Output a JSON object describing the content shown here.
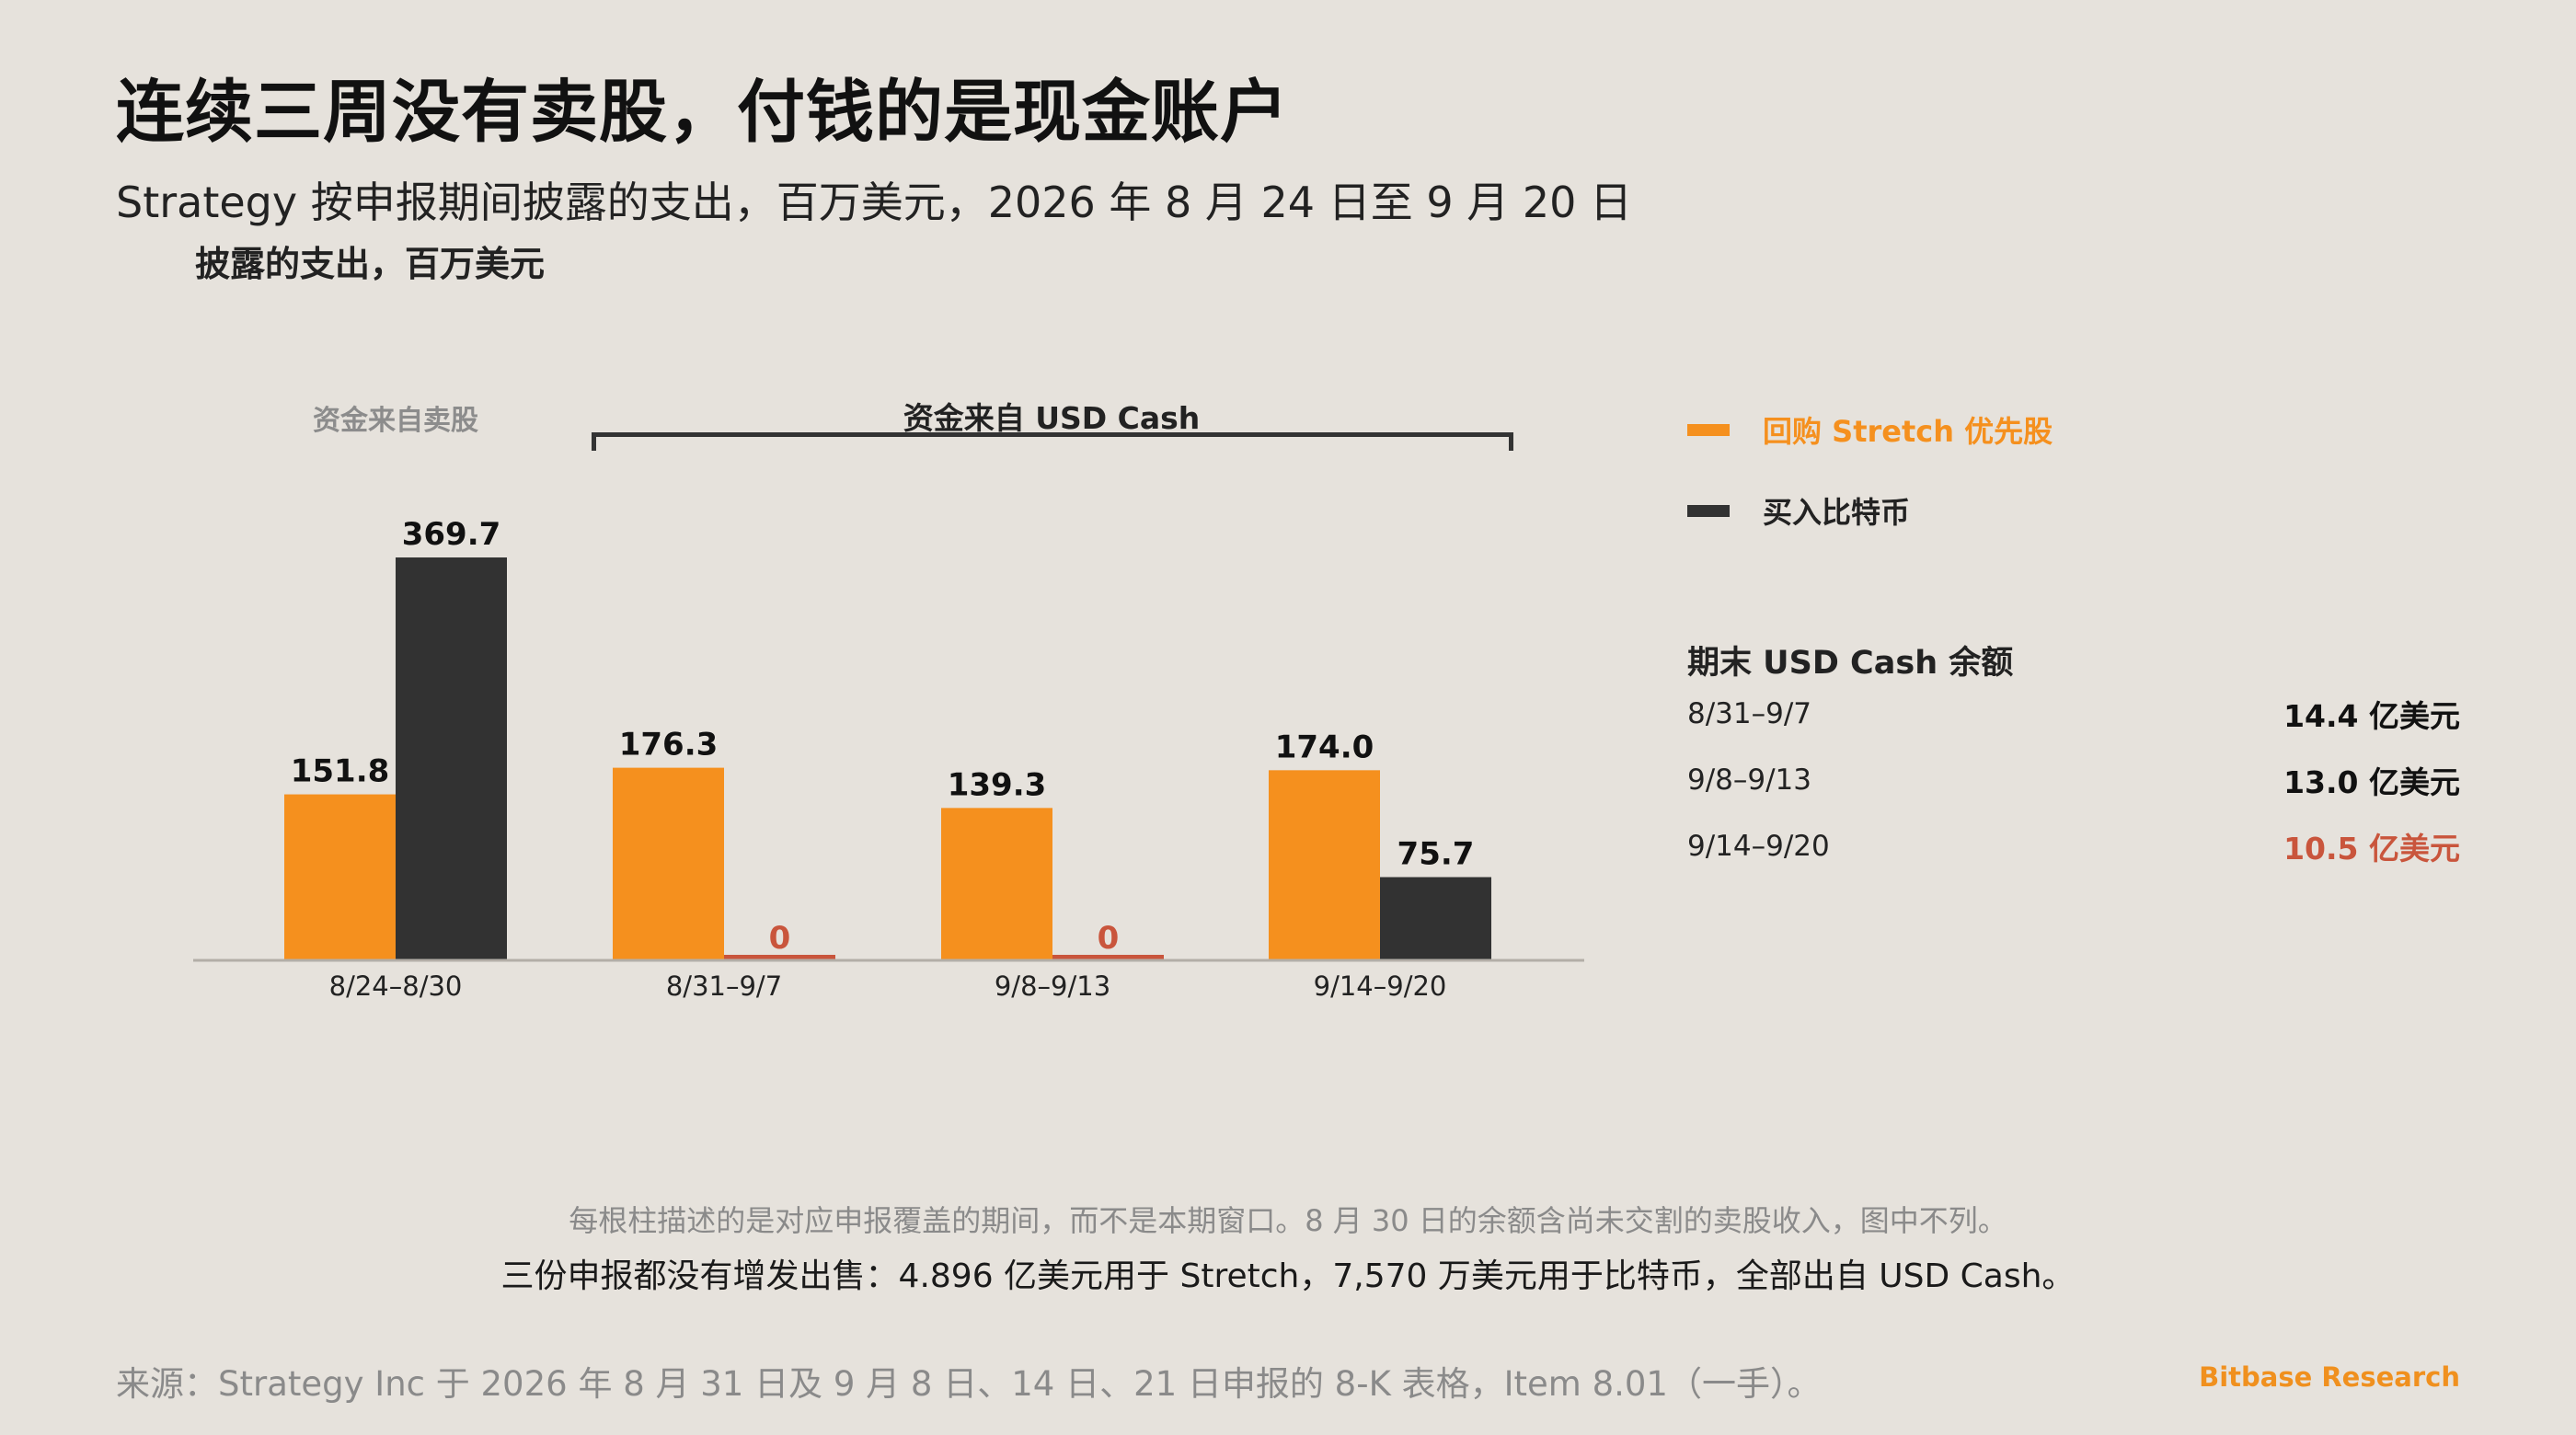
{
  "title": "连续三周没有卖股，付钱的是现金账户",
  "subtitle": "Strategy 按申报期间披露的支出，百万美元，2026 年 8 月 24 日至 9 月 20 日",
  "colors": {
    "stretch": "#f5901e",
    "bitcoin": "#323232",
    "zero": "#c9553c",
    "axis": "#b3aea7",
    "highlight": "#c9553c"
  },
  "legend": [
    {
      "label": "回购 Stretch 优先股",
      "color": "#f5901e"
    },
    {
      "label": "买入比特币",
      "color": "#323232"
    }
  ],
  "cash_balance": {
    "title": "期末 USD Cash 余额",
    "rows": [
      {
        "period": "8/31–9/7",
        "value": "14.4 亿美元",
        "highlight": false
      },
      {
        "period": "9/8–9/13",
        "value": "13.0 亿美元",
        "highlight": false
      },
      {
        "period": "9/14–9/20",
        "value": "10.5 亿美元",
        "highlight": true
      }
    ]
  },
  "chart_data": {
    "type": "bar",
    "title": "",
    "ylabel": "披露的支出，百万美元",
    "xlabel": "",
    "categories": [
      "8/24–8/30",
      "8/31–9/7",
      "9/8–9/13",
      "9/14–9/20"
    ],
    "series": [
      {
        "name": "回购 Stretch 优先股",
        "values": [
          151.8,
          176.3,
          139.3,
          174.0
        ]
      },
      {
        "name": "买入比特币",
        "values": [
          369.7,
          0,
          0,
          75.7
        ]
      }
    ],
    "value_labels": [
      [
        "151.8",
        "176.3",
        "139.3",
        "174.0"
      ],
      [
        "369.7",
        "0",
        "0",
        "75.7"
      ]
    ],
    "ylim": [
      0,
      380
    ],
    "grid": false,
    "legend_position": "right",
    "annotations": {
      "sale_group": "资金来自卖股",
      "cash_group": "资金来自 USD Cash"
    }
  },
  "notes": {
    "line1": "每根柱描述的是对应申报覆盖的期间，而不是本期窗口。8 月 30 日的余额含尚未交割的卖股收入，图中不列。",
    "line2": "三份申报都没有增发出售：4.896 亿美元用于 Stretch，7,570 万美元用于比特币，全部出自 USD Cash。"
  },
  "source": "来源：Strategy Inc 于 2026 年 8 月 31 日及 9 月 8 日、14 日、21 日申报的 8-K 表格，Item 8.01（一手）。",
  "brand": "Bitbase Research"
}
